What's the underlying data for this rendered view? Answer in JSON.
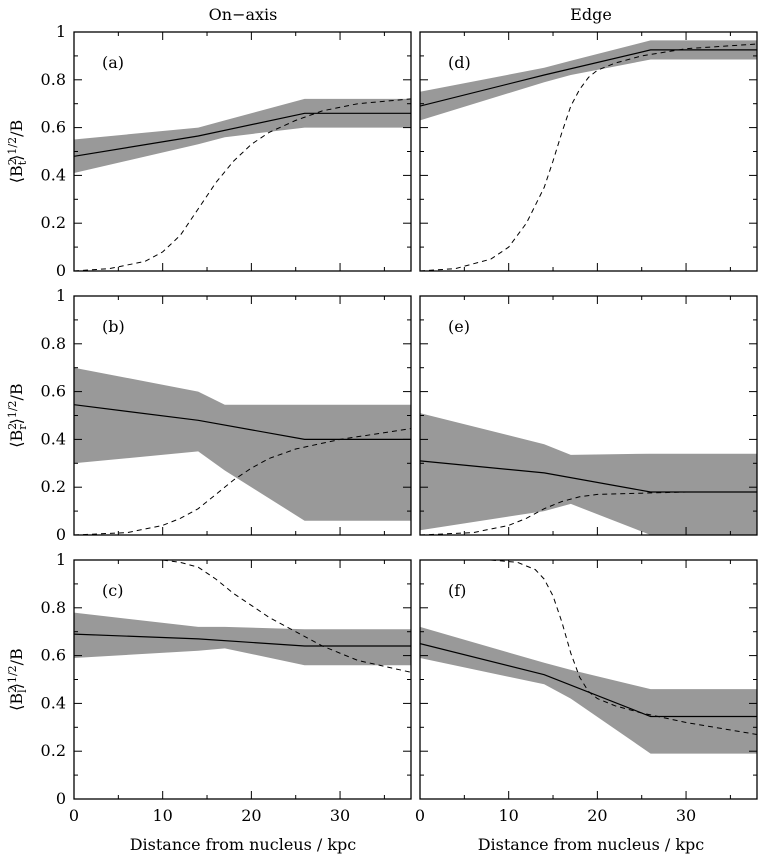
{
  "chart_data": {
    "type": "line",
    "columns": [
      "On−axis",
      "Edge"
    ],
    "xlabel": "Distance from nucleus / kpc",
    "xlim": [
      0,
      38
    ],
    "xticks": [
      0,
      10,
      20,
      30
    ],
    "ylim": [
      0,
      1
    ],
    "yticks": [
      0,
      0.2,
      0.4,
      0.6,
      0.8,
      1
    ],
    "ytick_labels": [
      "0",
      "0.2",
      "0.4",
      "0.6",
      "0.8",
      "1"
    ],
    "rows": [
      {
        "ylabel": {
          "base": "⟨B",
          "sup": "2",
          "sub": "t",
          "tail": "⟩",
          "pow": "1/2",
          "rest": "/B"
        }
      },
      {
        "ylabel": {
          "base": "⟨B",
          "sup": "2",
          "sub": "r",
          "tail": "⟩",
          "pow": "1/2",
          "rest": "/B"
        }
      },
      {
        "ylabel": {
          "base": "⟨B",
          "sup": "2",
          "sub": "l",
          "tail": "⟩",
          "pow": "1/2",
          "rest": "/B"
        }
      }
    ],
    "panels": [
      {
        "label": "(a)",
        "row": 0,
        "col": 0,
        "median": {
          "x": [
            0,
            14,
            26,
            38
          ],
          "y": [
            0.48,
            0.565,
            0.66,
            0.66
          ]
        },
        "band": {
          "x": [
            0,
            14,
            17,
            26,
            38
          ],
          "upper": [
            0.55,
            0.6,
            0.63,
            0.72,
            0.72
          ],
          "lower": [
            0.41,
            0.53,
            0.56,
            0.6,
            0.6
          ]
        },
        "dashed": {
          "x": [
            0,
            4,
            8,
            10,
            12,
            14,
            16,
            18,
            20,
            22,
            25,
            28,
            32,
            38
          ],
          "y": [
            0.0,
            0.01,
            0.04,
            0.08,
            0.15,
            0.26,
            0.37,
            0.46,
            0.53,
            0.58,
            0.63,
            0.67,
            0.7,
            0.72
          ]
        }
      },
      {
        "label": "(d)",
        "row": 0,
        "col": 1,
        "median": {
          "x": [
            0,
            14,
            26,
            38
          ],
          "y": [
            0.69,
            0.82,
            0.925,
            0.925
          ]
        },
        "band": {
          "x": [
            0,
            14,
            17,
            26,
            38
          ],
          "upper": [
            0.75,
            0.85,
            0.88,
            0.965,
            0.965
          ],
          "lower": [
            0.63,
            0.79,
            0.82,
            0.885,
            0.885
          ]
        },
        "dashed": {
          "x": [
            0,
            4,
            8,
            10,
            12,
            14,
            15,
            16,
            17,
            18,
            19,
            20,
            22,
            25,
            30,
            38
          ],
          "y": [
            0.0,
            0.01,
            0.05,
            0.1,
            0.2,
            0.35,
            0.46,
            0.58,
            0.69,
            0.76,
            0.81,
            0.84,
            0.87,
            0.9,
            0.93,
            0.95
          ]
        }
      },
      {
        "label": "(b)",
        "row": 1,
        "col": 0,
        "median": {
          "x": [
            0,
            14,
            26,
            38
          ],
          "y": [
            0.545,
            0.48,
            0.4,
            0.4
          ]
        },
        "band": {
          "x": [
            0,
            14,
            17,
            26,
            38
          ],
          "upper": [
            0.7,
            0.6,
            0.545,
            0.545,
            0.545
          ],
          "lower": [
            0.3,
            0.35,
            0.27,
            0.06,
            0.06
          ]
        },
        "dashed": {
          "x": [
            0,
            6,
            10,
            12,
            14,
            16,
            18,
            20,
            22,
            25,
            30,
            38
          ],
          "y": [
            0.0,
            0.01,
            0.04,
            0.07,
            0.11,
            0.17,
            0.23,
            0.28,
            0.32,
            0.36,
            0.4,
            0.445
          ]
        }
      },
      {
        "label": "(e)",
        "row": 1,
        "col": 1,
        "median": {
          "x": [
            0,
            14,
            26,
            38
          ],
          "y": [
            0.31,
            0.26,
            0.18,
            0.18
          ]
        },
        "band": {
          "x": [
            0,
            14,
            17,
            26,
            38
          ],
          "upper": [
            0.51,
            0.38,
            0.335,
            0.34,
            0.34
          ],
          "lower": [
            0.02,
            0.1,
            0.13,
            0.0,
            0.0
          ]
        },
        "dashed": {
          "x": [
            0,
            6,
            10,
            12,
            14,
            16,
            18,
            20,
            25,
            30,
            38
          ],
          "y": [
            0.0,
            0.01,
            0.04,
            0.07,
            0.11,
            0.14,
            0.16,
            0.17,
            0.175,
            0.18,
            0.18
          ]
        }
      },
      {
        "label": "(c)",
        "row": 2,
        "col": 0,
        "median": {
          "x": [
            0,
            14,
            26,
            38
          ],
          "y": [
            0.69,
            0.67,
            0.64,
            0.64
          ]
        },
        "band": {
          "x": [
            0,
            14,
            17,
            26,
            38
          ],
          "upper": [
            0.78,
            0.72,
            0.72,
            0.71,
            0.71
          ],
          "lower": [
            0.59,
            0.62,
            0.63,
            0.56,
            0.56
          ]
        },
        "dashed": {
          "x": [
            8,
            10,
            12,
            14,
            16,
            18,
            20,
            22,
            25,
            28,
            32,
            38
          ],
          "y": [
            1.0,
            1.0,
            0.99,
            0.97,
            0.92,
            0.86,
            0.81,
            0.76,
            0.7,
            0.64,
            0.58,
            0.53
          ]
        }
      },
      {
        "label": "(f)",
        "row": 2,
        "col": 1,
        "median": {
          "x": [
            0,
            14,
            26,
            38
          ],
          "y": [
            0.65,
            0.52,
            0.345,
            0.345
          ]
        },
        "band": {
          "x": [
            0,
            14,
            17,
            26,
            38
          ],
          "upper": [
            0.72,
            0.57,
            0.54,
            0.46,
            0.46
          ],
          "lower": [
            0.59,
            0.48,
            0.42,
            0.19,
            0.19
          ]
        },
        "dashed": {
          "x": [
            8,
            11,
            13,
            14,
            15,
            16,
            17,
            18,
            19,
            20,
            22,
            25,
            30,
            38
          ],
          "y": [
            1.0,
            0.99,
            0.96,
            0.92,
            0.85,
            0.74,
            0.61,
            0.51,
            0.45,
            0.42,
            0.39,
            0.36,
            0.32,
            0.27
          ]
        }
      }
    ]
  }
}
